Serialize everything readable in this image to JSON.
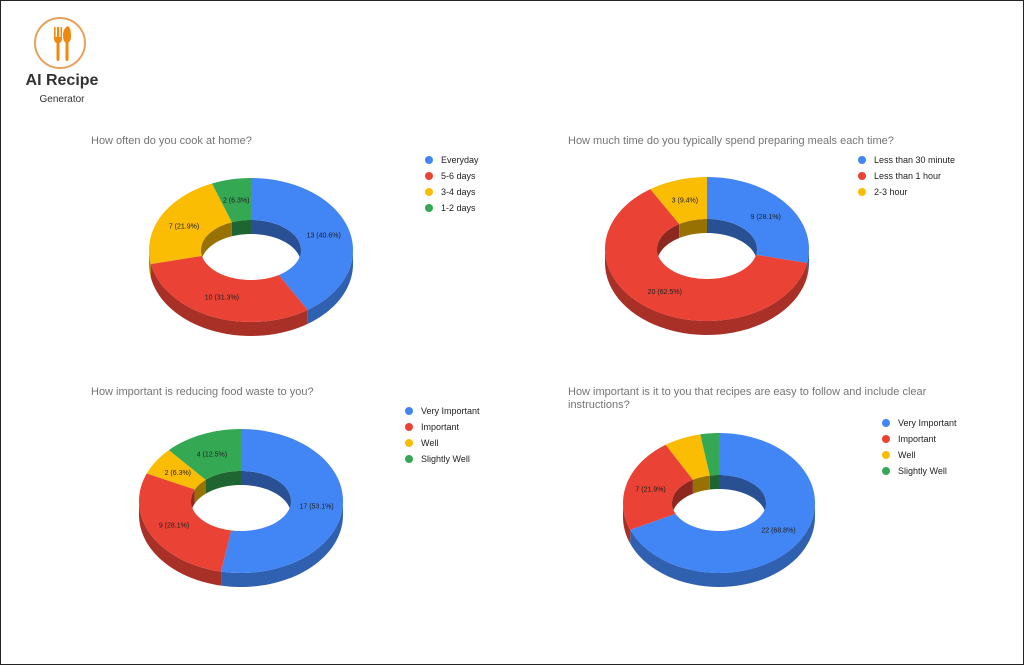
{
  "logo": {
    "title": "AI Recipe",
    "subtitle": "Generator",
    "icon": "spoon-fork-icon",
    "accent": "#e6a15a",
    "fill": "#f0890f"
  },
  "colors": {
    "blue": "#4285f4",
    "red": "#ea4335",
    "yellow": "#fbbc04",
    "green": "#34a853"
  },
  "chart_data": [
    {
      "type": "pie",
      "title": "How often do you cook at home?",
      "categories": [
        "Everyday",
        "5-6 days",
        "3-4 days",
        "1-2 days"
      ],
      "values": [
        13,
        10,
        7,
        2
      ],
      "labels": [
        "13 (40.6%)",
        "10 (31.3%)",
        "7 (21.9%)",
        "2 (6.3%)"
      ],
      "colors": [
        "#4285f4",
        "#ea4335",
        "#fbbc04",
        "#34a853"
      ],
      "legend_position": "right",
      "style": "3d-donut"
    },
    {
      "type": "pie",
      "title": "How much time do you typically spend preparing meals each time?",
      "categories": [
        "Less than 30 minute",
        "Less than 1 hour",
        "2-3 hour"
      ],
      "values": [
        9,
        20,
        3
      ],
      "labels": [
        "9 (28.1%)",
        "20 (62.5%)",
        "3 (9.4%)"
      ],
      "colors": [
        "#4285f4",
        "#ea4335",
        "#fbbc04"
      ],
      "legend_position": "right",
      "style": "3d-donut"
    },
    {
      "type": "pie",
      "title": "How important is reducing food waste to you?",
      "categories": [
        "Very Important",
        "Important",
        "Well",
        "Slightly Well"
      ],
      "values": [
        17,
        9,
        2,
        4
      ],
      "labels": [
        "17 (53.1%)",
        "9 (28.1%)",
        "2 (6.3%)",
        "4 (12.5%)"
      ],
      "colors": [
        "#4285f4",
        "#ea4335",
        "#fbbc04",
        "#34a853"
      ],
      "legend_position": "right",
      "style": "3d-donut"
    },
    {
      "type": "pie",
      "title": "How important is it to you that recipes are easy to follow and include clear instructions?",
      "categories": [
        "Very Important",
        "Important",
        "Well",
        "Slightly Well"
      ],
      "values": [
        22,
        7,
        2,
        1
      ],
      "labels": [
        "22 (68.8%)",
        "7 (21.9%)",
        "",
        ""
      ],
      "colors": [
        "#4285f4",
        "#ea4335",
        "#fbbc04",
        "#34a853"
      ],
      "legend_position": "right",
      "style": "3d-donut"
    }
  ]
}
